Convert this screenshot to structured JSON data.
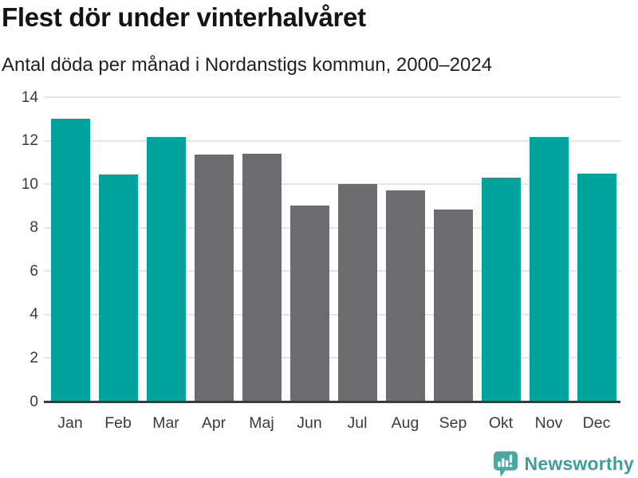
{
  "header": {
    "title": "Flest dör under vinterhalvåret",
    "subtitle": "Antal döda per månad i Nordanstigs kommun, 2000–2024"
  },
  "chart_data": {
    "type": "bar",
    "title": "Flest dör under vinterhalvåret",
    "subtitle": "Antal döda per månad i Nordanstigs kommun, 2000–2024",
    "categories": [
      "Jan",
      "Feb",
      "Mar",
      "Apr",
      "Maj",
      "Jun",
      "Jul",
      "Aug",
      "Sep",
      "Okt",
      "Nov",
      "Dec"
    ],
    "values": [
      13.0,
      10.45,
      12.15,
      11.35,
      11.4,
      9.0,
      10.0,
      9.7,
      8.85,
      10.3,
      12.15,
      10.5
    ],
    "bar_colors": [
      "highlight",
      "highlight",
      "highlight",
      "neutral",
      "neutral",
      "neutral",
      "neutral",
      "neutral",
      "neutral",
      "highlight",
      "highlight",
      "highlight"
    ],
    "xlabel": "",
    "ylabel": "",
    "ylim": [
      0,
      14
    ],
    "yticks": [
      0,
      2,
      4,
      6,
      8,
      10,
      12,
      14
    ],
    "grid": true,
    "legend": false
  },
  "colors": {
    "bar_highlight": "#00a49c",
    "bar_neutral": "#6b6b70",
    "grid": "#e5e5e5",
    "axis": "#3a3a3a",
    "tick_label": "#3a3a3a",
    "logo_icon": "#4ba8a1",
    "logo_text": "#3f9e98"
  },
  "footer": {
    "brand": "Newsworthy",
    "logo_icon": "bar-chart-speech-bubble"
  }
}
